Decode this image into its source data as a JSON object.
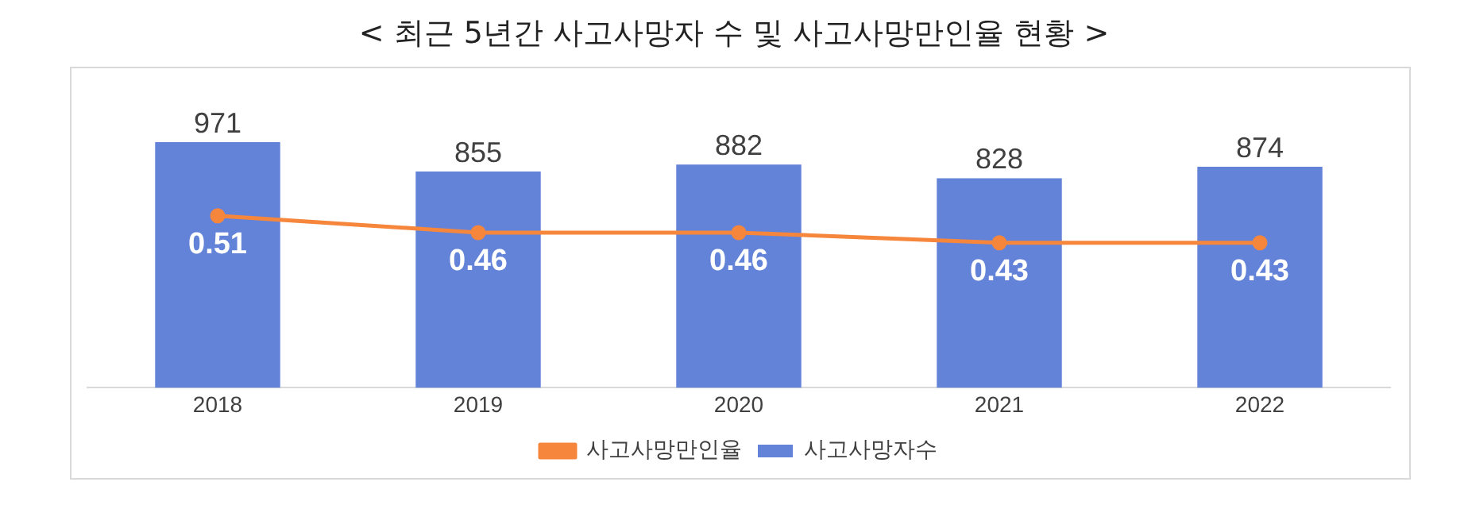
{
  "chart_data": {
    "type": "bar",
    "title": "< 최근 5년간 사고사망자 수 및 사고사망만인율 현황 >",
    "categories": [
      "2018",
      "2019",
      "2020",
      "2021",
      "2022"
    ],
    "series": [
      {
        "name": "사고사망자수",
        "type": "bar",
        "color": "#6383d9",
        "values": [
          971,
          855,
          882,
          828,
          874
        ]
      },
      {
        "name": "사고사망만인율",
        "type": "line",
        "axis": "y2",
        "color": "#f5863c",
        "marker": "circle",
        "values": [
          0.51,
          0.46,
          0.46,
          0.43,
          0.43
        ]
      }
    ],
    "data_labels": true,
    "legend": "bottom",
    "grid": false,
    "tick_labels": "x"
  }
}
